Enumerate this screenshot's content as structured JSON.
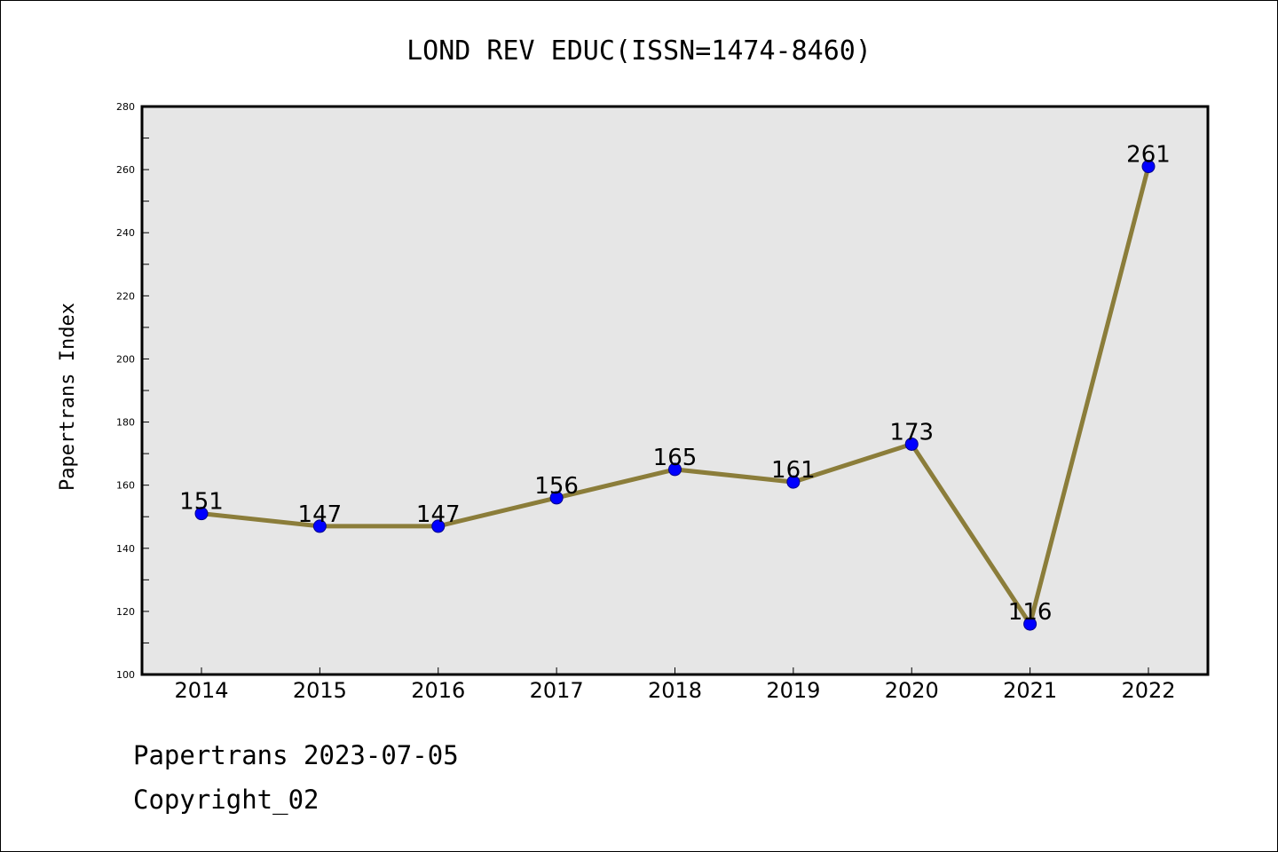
{
  "chart_data": {
    "type": "line",
    "title": "LOND REV EDUC(ISSN=1474-8460)",
    "xlabel": "",
    "ylabel": "Papertrans Index",
    "categories": [
      "2014",
      "2015",
      "2016",
      "2017",
      "2018",
      "2019",
      "2020",
      "2021",
      "2022"
    ],
    "series": [
      {
        "values": [
          151,
          147,
          147,
          156,
          165,
          161,
          173,
          116,
          261
        ]
      }
    ],
    "ylim": [
      100,
      280
    ],
    "yticks": [
      100,
      120,
      140,
      160,
      180,
      200,
      220,
      240,
      260,
      280
    ],
    "data_labels": [
      "151",
      "147",
      "147",
      "156",
      "165",
      "161",
      "173",
      "116",
      "261"
    ],
    "grid": false,
    "legend": "none",
    "colors": {
      "line": "#8b7d3a",
      "marker_fill": "#0000ff",
      "marker_edge": "#00008b",
      "plot_background": "#e6e6e6",
      "page_background": "#ffffff"
    }
  },
  "footer": {
    "line1": "Papertrans 2023-07-05",
    "line2": "Copyright_02"
  }
}
